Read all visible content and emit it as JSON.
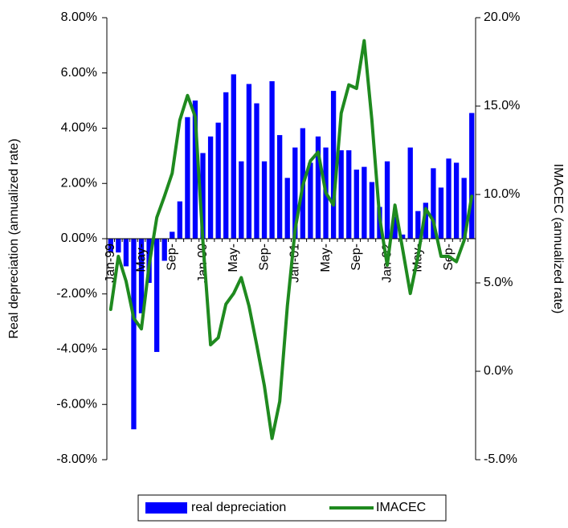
{
  "chart_data": {
    "type": "bar_line",
    "y_label": "Real depreciation (annualized rate)",
    "y2_label": "IMACEC (annualized rate)",
    "categories": [
      "Jan-99",
      null,
      null,
      null,
      "May-",
      null,
      null,
      null,
      "Sep-",
      null,
      null,
      null,
      "Jan-00",
      null,
      null,
      null,
      "May-",
      null,
      null,
      null,
      "Sep-",
      null,
      null,
      null,
      "Jan-01",
      null,
      null,
      null,
      "May-",
      null,
      null,
      null,
      "Sep-",
      null,
      null,
      null,
      "Jan-02",
      null,
      null,
      null,
      "May-",
      null,
      null,
      null,
      "Sep-",
      null,
      null,
      null
    ],
    "series": [
      {
        "name": "real depreciation",
        "color": "#0000ff",
        "axis": "y",
        "values": [
          -0.5,
          -0.5,
          -1.0,
          -6.9,
          -2.7,
          -1.6,
          -4.1,
          -0.8,
          0.25,
          1.35,
          4.4,
          5.0,
          3.1,
          3.7,
          4.2,
          5.3,
          5.95,
          2.8,
          5.6,
          4.9,
          2.8,
          5.7,
          3.75,
          2.2,
          3.3,
          4.0,
          2.75,
          3.7,
          3.3,
          5.35,
          3.2,
          3.2,
          2.5,
          2.6,
          2.05,
          1.15,
          2.8,
          0.8,
          0.15,
          3.3,
          1.0,
          1.3,
          2.55,
          1.85,
          2.9,
          2.75,
          2.2,
          4.55
        ]
      },
      {
        "name": "IMACEC",
        "color": "#1f8a1f",
        "axis": "y2",
        "values": [
          3.5,
          6.5,
          5.1,
          3.0,
          2.4,
          6.0,
          8.7,
          9.9,
          11.2,
          14.2,
          15.6,
          14.4,
          7.4,
          1.5,
          1.9,
          3.8,
          4.4,
          5.3,
          3.7,
          1.5,
          -0.8,
          -3.8,
          -1.7,
          3.7,
          8.0,
          10.5,
          11.9,
          12.4,
          10.1,
          9.4,
          14.6,
          16.2,
          16.0,
          18.7,
          14.2,
          8.7,
          6.0,
          9.4,
          6.9,
          4.4,
          6.5,
          9.2,
          8.5,
          6.5,
          6.5,
          6.2,
          7.4,
          9.9
        ]
      }
    ],
    "ylim": [
      -8,
      8
    ],
    "yticks": [
      {
        "value": 8,
        "label": "8.00%"
      },
      {
        "value": 6,
        "label": "6.00%"
      },
      {
        "value": 4,
        "label": "4.00%"
      },
      {
        "value": 2,
        "label": "2.00%"
      },
      {
        "value": 0,
        "label": "0.00%"
      },
      {
        "value": -2,
        "label": "-2.00%"
      },
      {
        "value": -4,
        "label": "-4.00%"
      },
      {
        "value": -6,
        "label": "-6.00%"
      },
      {
        "value": -8,
        "label": "-8.00%"
      }
    ],
    "y2lim": [
      -5,
      20
    ],
    "y2ticks": [
      {
        "value": 20,
        "label": "20.0%"
      },
      {
        "value": 15,
        "label": "15.0%"
      },
      {
        "value": 10,
        "label": "10.0%"
      },
      {
        "value": 5,
        "label": "5.0%"
      },
      {
        "value": 0,
        "label": "0.0%"
      },
      {
        "value": -5,
        "label": "-5.0%"
      }
    ],
    "legend": "bottom"
  }
}
